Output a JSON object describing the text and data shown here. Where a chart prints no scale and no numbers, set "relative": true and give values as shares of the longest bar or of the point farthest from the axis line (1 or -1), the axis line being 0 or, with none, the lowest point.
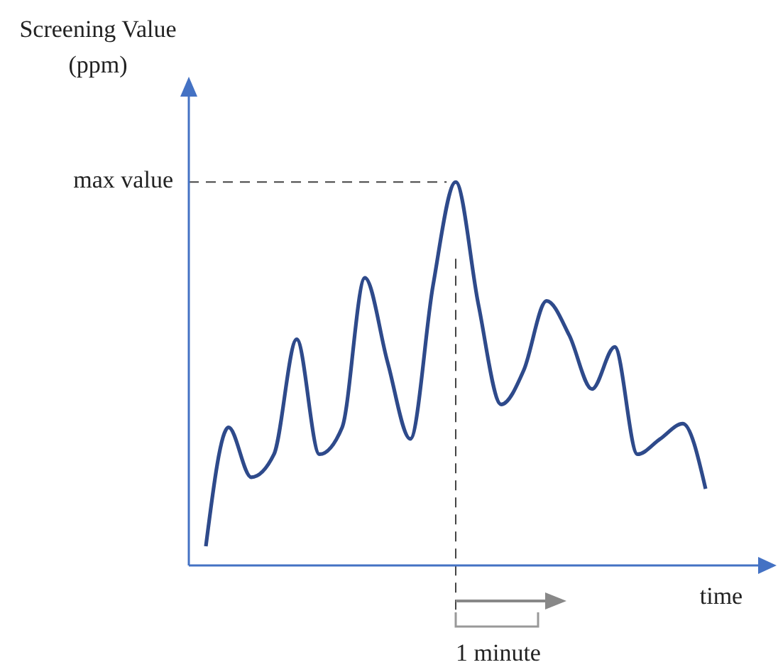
{
  "chart_data": {
    "type": "line",
    "relative": true,
    "ylabel": "Screening Value\n(ppm)",
    "xlabel": "time",
    "categories": [
      null,
      null,
      null,
      null,
      null,
      null,
      null,
      null,
      null,
      null,
      null,
      null,
      null,
      null,
      null,
      null,
      null,
      null,
      null,
      null,
      null,
      null,
      null
    ],
    "series": [
      {
        "color": "#2e4a8b",
        "values": [
          0.05,
          0.36,
          0.23,
          0.29,
          0.59,
          0.29,
          0.36,
          0.75,
          0.53,
          0.33,
          0.73,
          1.0,
          0.68,
          0.42,
          0.51,
          0.69,
          0.6,
          0.46,
          0.57,
          0.29,
          0.33,
          0.37,
          0.2
        ]
      }
    ],
    "annotations": [
      "max value",
      "1 minute"
    ],
    "marker": "none",
    "line_style": "solid"
  }
}
